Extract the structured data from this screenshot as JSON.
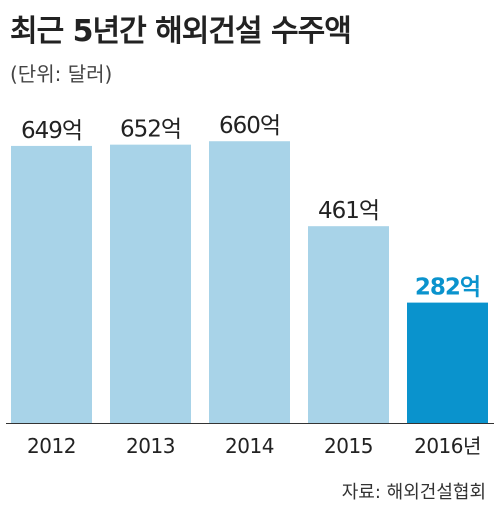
{
  "title": "최근 5년간 해외건설 수주액",
  "subtitle": "(단위: 달러)",
  "source": "자료: 해외건설협회",
  "colors": {
    "bar_default": "#a8d3e8",
    "bar_highlight": "#0a93cd",
    "label_default": "#222222",
    "label_highlight": "#0a93cd",
    "axis": "#333333"
  },
  "chart_data": {
    "type": "bar",
    "title": "최근 5년간 해외건설 수주액",
    "subtitle": "(단위: 달러)",
    "categories": [
      "2012",
      "2013",
      "2014",
      "2015",
      "2016년"
    ],
    "values": [
      649,
      652,
      660,
      461,
      282
    ],
    "value_labels": [
      "649억",
      "652억",
      "660억",
      "461억",
      "282억"
    ],
    "highlight_index": 4,
    "ylim": [
      0,
      780
    ],
    "grid": false,
    "legend": "none"
  }
}
